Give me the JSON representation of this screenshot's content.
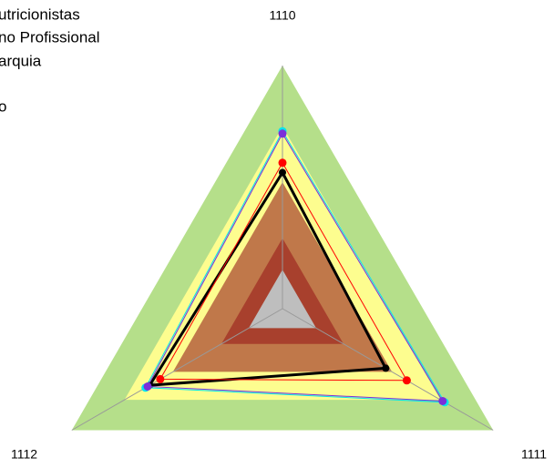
{
  "chart_data": {
    "type": "radar",
    "axes": [
      "1110",
      "1111",
      "1112"
    ],
    "rlim": [
      0,
      100
    ],
    "bands": [
      {
        "value": 100,
        "color": "#b5df8a"
      },
      {
        "value": 75,
        "color": "#fdfd8f"
      },
      {
        "value": 52,
        "color": "#c0784a"
      },
      {
        "value": 29,
        "color": "#a8402d"
      },
      {
        "value": 16,
        "color": "#bebebe"
      }
    ],
    "series": [
      {
        "name": "utricionistas",
        "color": "#000000",
        "values": [
          56,
          49,
          63
        ]
      },
      {
        "name": "no Profissional",
        "color": "#ff0000",
        "values": [
          60,
          59,
          58
        ]
      },
      {
        "name": "arquia",
        "color": "#00e5ee",
        "values": [
          73,
          77,
          65
        ]
      },
      {
        "name": "o",
        "color": "#7b2fd9",
        "values": [
          72,
          76,
          64
        ]
      }
    ]
  }
}
